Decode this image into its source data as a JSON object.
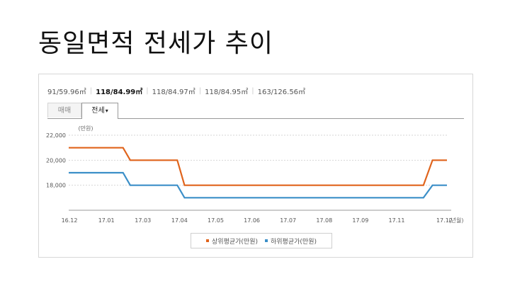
{
  "slide": {
    "title": "동일면적 전세가 추이"
  },
  "size_tabs": [
    {
      "label": "91/59.96㎡",
      "active": false
    },
    {
      "label": "118/84.99㎡",
      "active": true
    },
    {
      "label": "118/84.97㎡",
      "active": false
    },
    {
      "label": "118/84.95㎡",
      "active": false
    },
    {
      "label": "163/126.56㎡",
      "active": false
    }
  ],
  "type_tabs": {
    "sale_label": "매매",
    "jeonse_label": "전세",
    "jeonse_caret": "▾"
  },
  "chart_data": {
    "type": "line",
    "y_unit": "(만원)",
    "x_unit": "(년월)",
    "categories": [
      "16.12",
      "17.01",
      "17.03",
      "17.04",
      "17.05",
      "17.06",
      "17.07",
      "17.08",
      "17.09",
      "17.11",
      "17.12"
    ],
    "y_ticks": [
      "22,000",
      "20,000",
      "18,000"
    ],
    "ylim": [
      16000,
      22000
    ],
    "grid": true,
    "legend_position": "bottom",
    "series": [
      {
        "name": "상위평균가(만원)",
        "color": "#e0641c",
        "points": [
          [
            0,
            21000
          ],
          [
            1.5,
            21000
          ],
          [
            1.7,
            20000
          ],
          [
            3.0,
            20000
          ],
          [
            3.2,
            18000
          ],
          [
            9.8,
            18000
          ],
          [
            10.05,
            20000
          ],
          [
            10.45,
            20000
          ]
        ]
      },
      {
        "name": "하위평균가(만원)",
        "color": "#3b8fc8",
        "points": [
          [
            0,
            19000
          ],
          [
            1.5,
            19000
          ],
          [
            1.7,
            18000
          ],
          [
            3.0,
            18000
          ],
          [
            3.2,
            17000
          ],
          [
            9.8,
            17000
          ],
          [
            10.05,
            18000
          ],
          [
            10.45,
            18000
          ]
        ]
      }
    ]
  }
}
